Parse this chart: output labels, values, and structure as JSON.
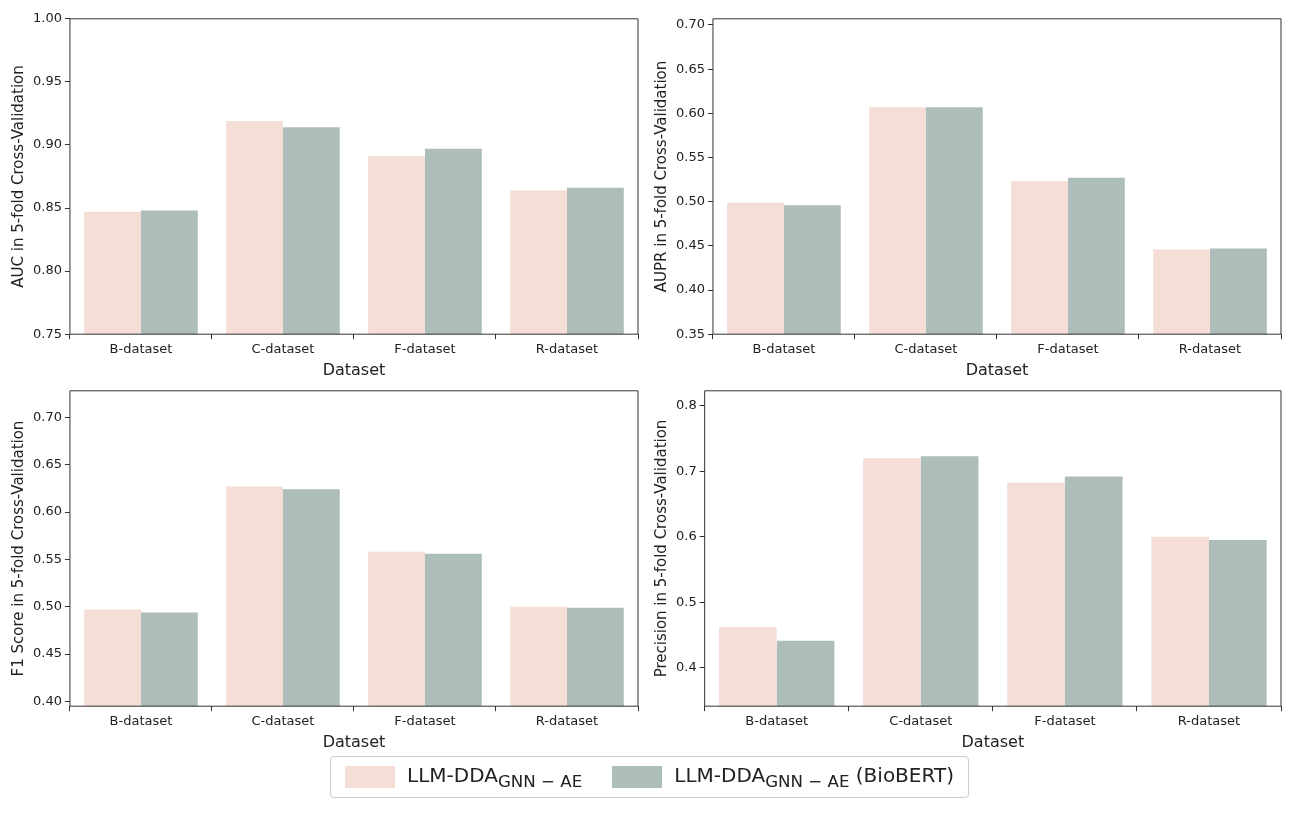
{
  "chart_data": [
    {
      "type": "bar",
      "xlabel": "Dataset",
      "ylabel": "AUC in 5-fold Cross-Validation",
      "categories": [
        "B-dataset",
        "C-dataset",
        "F-dataset",
        "R-dataset"
      ],
      "series": [
        {
          "name": "LLM-DDA$_{GNN − AE}$",
          "color": "#f4ded6",
          "values": [
            0.847,
            0.919,
            0.891,
            0.864
          ]
        },
        {
          "name": "LLM-DDA$_{GNN − AE}$ (BioBERT)",
          "color": "#adbdb9",
          "values": [
            0.848,
            0.914,
            0.897,
            0.866
          ]
        }
      ],
      "ylim": [
        0.75,
        1.0
      ],
      "yticks": [
        0.75,
        {
          "value": 0.8,
          "label": "0.80"
        },
        0.85,
        {
          "value": 0.9,
          "label": "0.90"
        },
        0.95,
        {
          "value": 1.0,
          "label": "1.00"
        }
      ],
      "legend": "bottom"
    },
    {
      "type": "bar",
      "xlabel": "Dataset",
      "ylabel": "AUPR in 5-fold Cross-Validation",
      "categories": [
        "B-dataset",
        "C-dataset",
        "F-dataset",
        "R-dataset"
      ],
      "series": [
        {
          "color": "#f4ded6",
          "values": [
            0.499,
            0.607,
            0.523,
            0.446
          ]
        },
        {
          "color": "#adbdb9",
          "values": [
            0.496,
            0.607,
            0.527,
            0.447
          ]
        }
      ],
      "ylim": [
        0.35,
        0.707
      ],
      "yticks": [
        0.35,
        {
          "value": 0.4,
          "label": "0.40"
        },
        0.45,
        {
          "value": 0.5,
          "label": "0.50"
        },
        0.55,
        {
          "value": 0.6,
          "label": "0.60"
        },
        0.65,
        {
          "value": 0.7,
          "label": "0.70"
        }
      ]
    },
    {
      "type": "bar",
      "xlabel": "Dataset",
      "ylabel": "F1 Score in 5-fold Cross-Validation",
      "categories": [
        "B-dataset",
        "C-dataset",
        "F-dataset",
        "R-dataset"
      ],
      "series": [
        {
          "color": "#f4ded6",
          "values": [
            0.497,
            0.627,
            0.558,
            0.5
          ]
        },
        {
          "color": "#adbdb9",
          "values": [
            0.494,
            0.624,
            0.556,
            0.499
          ]
        }
      ],
      "ylim": [
        0.395,
        0.728
      ],
      "yticks": [
        {
          "value": 0.4,
          "label": "0.40"
        },
        0.45,
        {
          "value": 0.5,
          "label": "0.50"
        },
        0.55,
        {
          "value": 0.6,
          "label": "0.60"
        },
        0.65,
        {
          "value": 0.7,
          "label": "0.70"
        }
      ]
    },
    {
      "type": "bar",
      "xlabel": "Dataset",
      "ylabel": "Precision in 5-fold Cross-Validation",
      "categories": [
        "B-dataset",
        "C-dataset",
        "F-dataset",
        "R-dataset"
      ],
      "series": [
        {
          "color": "#f4ded6",
          "values": [
            0.462,
            0.72,
            0.683,
            0.6
          ]
        },
        {
          "color": "#adbdb9",
          "values": [
            0.441,
            0.723,
            0.692,
            0.595
          ]
        }
      ],
      "ylim": [
        0.341,
        0.823
      ],
      "yticks": [
        0.4,
        0.5,
        0.6,
        0.7,
        0.8
      ]
    }
  ]
}
